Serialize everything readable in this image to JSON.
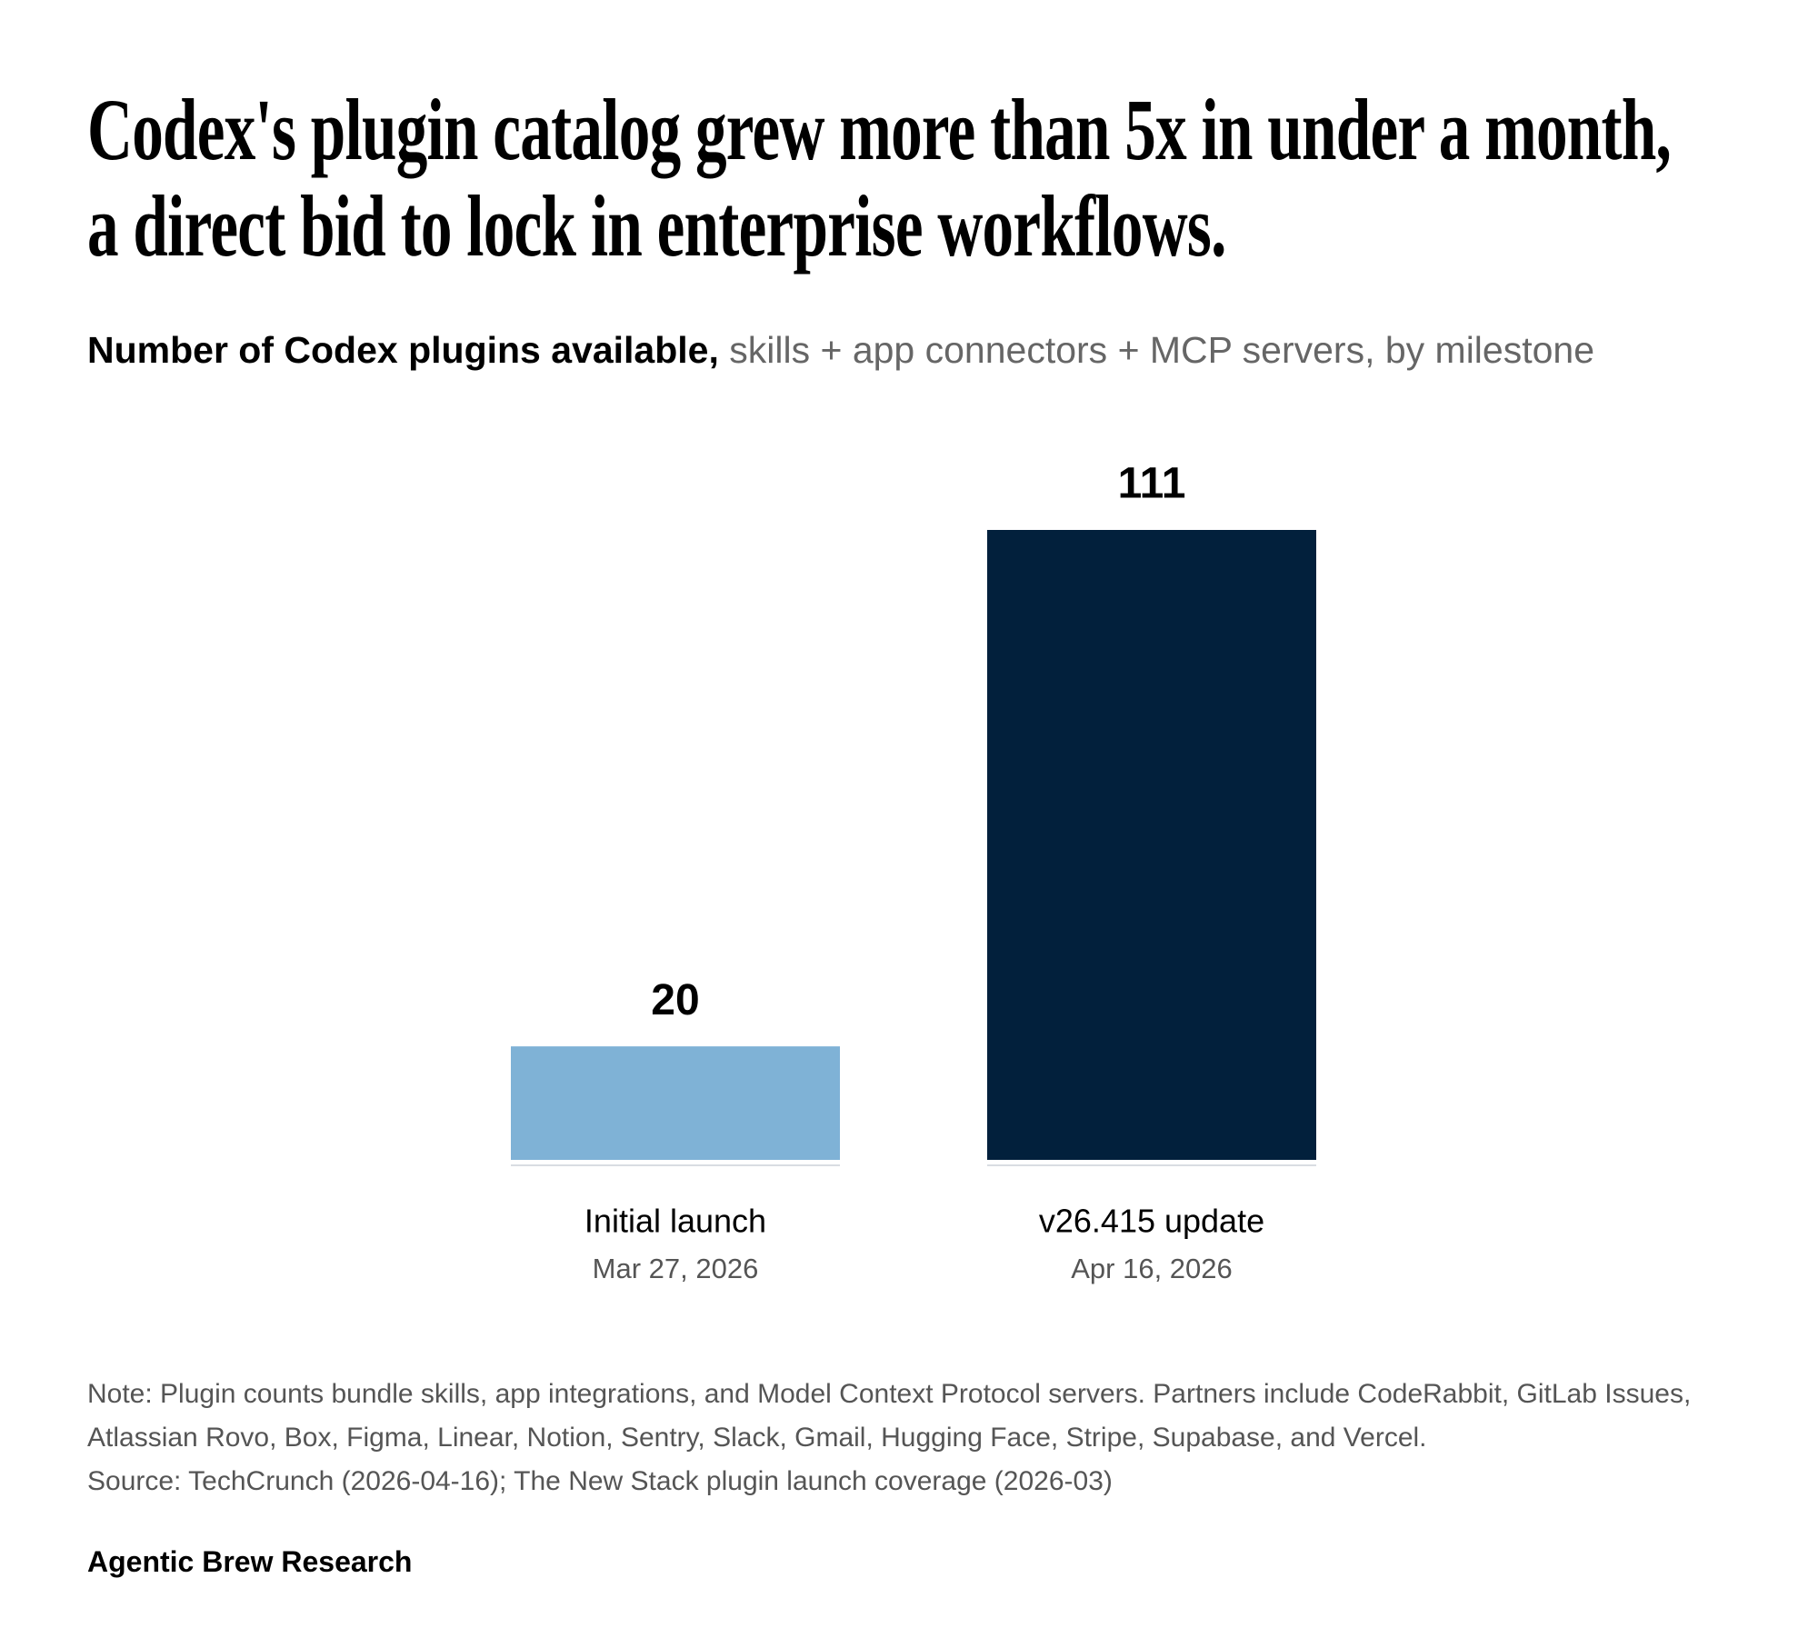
{
  "chart_data": {
    "type": "bar",
    "title": "Codex's plugin catalog grew more than 5x in under a month, a direct bid to lock in enterprise workflows.",
    "subtitle": {
      "lead": "Number of Codex plugins available,",
      "text": "skills + app connectors + MCP servers, by milestone"
    },
    "categories": [
      "Initial launch",
      "v26.415 update"
    ],
    "dates": [
      "Mar 27, 2026",
      "Apr 16, 2026"
    ],
    "values": [
      20,
      111
    ],
    "colors": [
      "#7fb2d6",
      "#02203c"
    ],
    "note": "Note: Plugin counts bundle skills, app integrations, and Model Context Protocol servers. Partners include CodeRabbit, GitLab Issues, Atlassian Rovo, Box, Figma, Linear, Notion, Sentry, Slack, Gmail, Hugging Face, Stripe, Supabase, and Vercel.",
    "source": "Source: TechCrunch (2026-04-16); The New Stack plugin launch coverage (2026-03)",
    "credit": "Agentic Brew Research"
  }
}
